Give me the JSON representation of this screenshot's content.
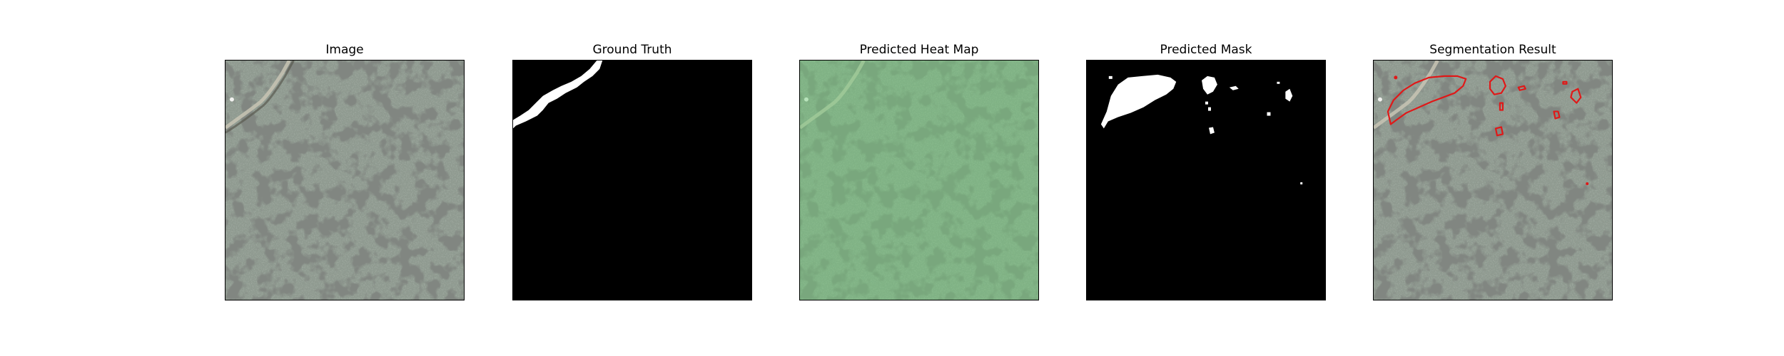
{
  "figure": {
    "panels": [
      {
        "title": "Image"
      },
      {
        "title": "Ground Truth"
      },
      {
        "title": "Predicted Heat Map"
      },
      {
        "title": "Predicted Mask"
      },
      {
        "title": "Segmentation Result"
      }
    ]
  },
  "colors": {
    "background": "#ffffff",
    "rock_base": "#8f9a90",
    "rock_spots": "#3b3e3a",
    "mask_foreground": "#ffffff",
    "mask_background": "#000000",
    "heatmap_tint": "#7cc47f",
    "contour": "#e01818"
  }
}
